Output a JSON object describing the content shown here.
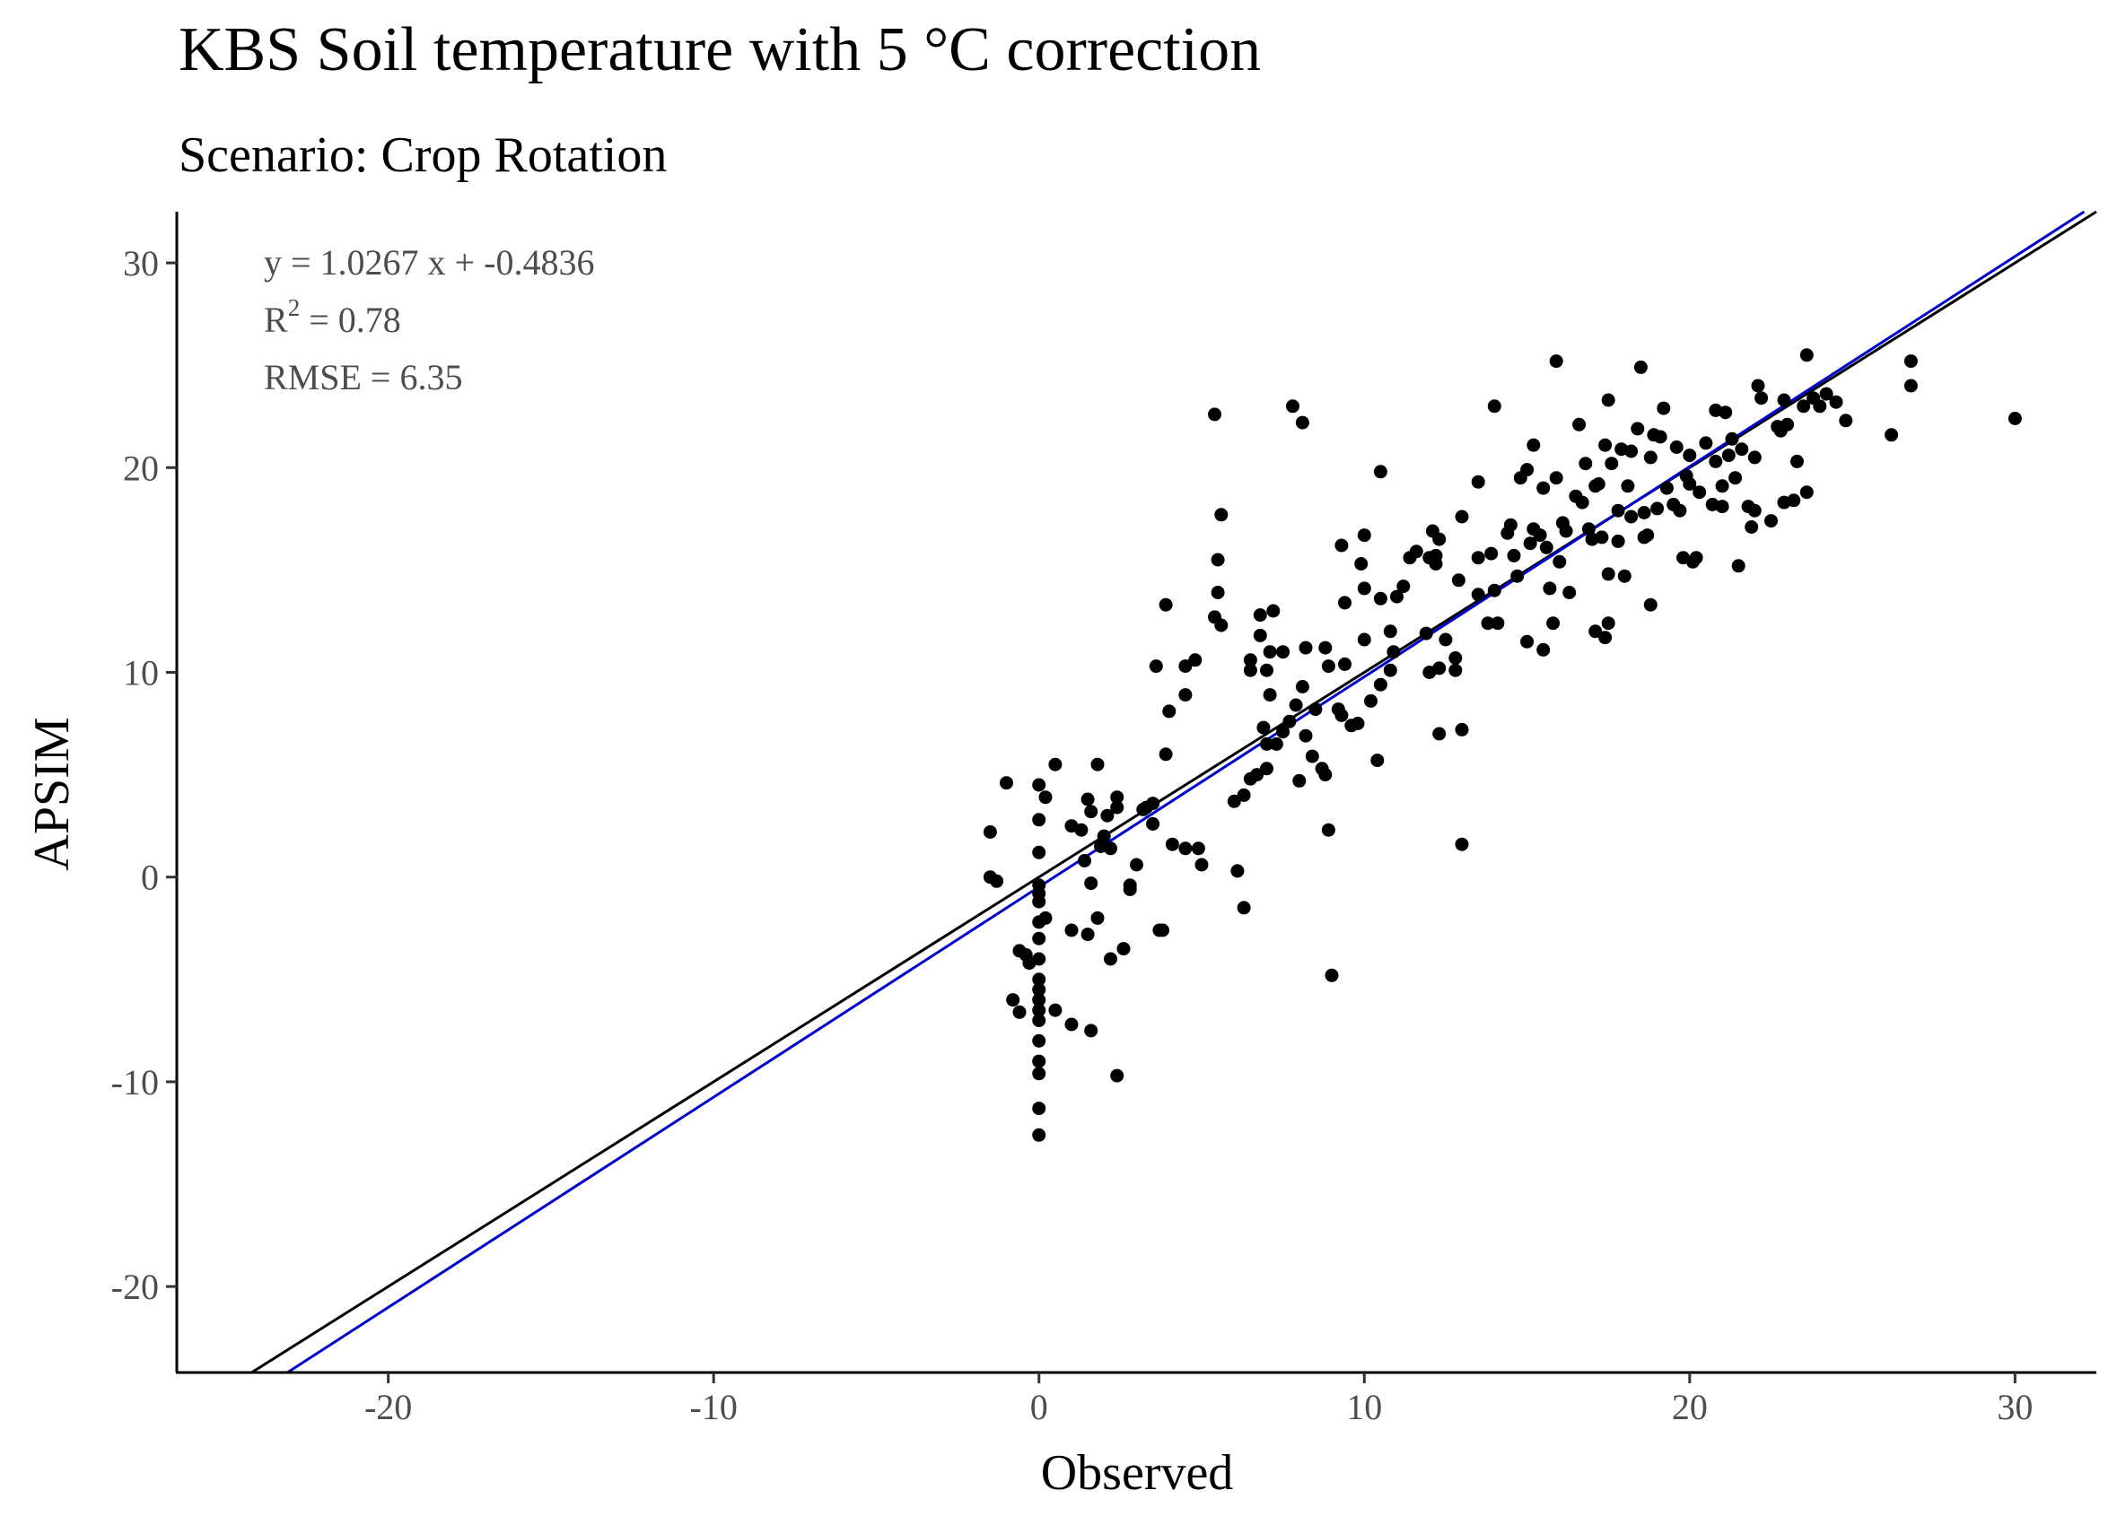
{
  "chart_data": {
    "type": "scatter",
    "title": "KBS Soil temperature with 5 °C correction",
    "subtitle": "Scenario: Crop Rotation",
    "xlabel": "Observed",
    "ylabel": "APSIM",
    "xlim": [
      -26.5,
      32.5
    ],
    "ylim": [
      -24.2,
      32.5
    ],
    "x_ticks": [
      -20,
      -10,
      0,
      10,
      20,
      30
    ],
    "y_ticks": [
      -20,
      -10,
      0,
      10,
      20,
      30
    ],
    "grid": false,
    "annotations": {
      "equation": "y = 1.0267 x +  -0.4836",
      "r2_base": "R",
      "r2_sup": "2",
      "r2_value": " = 0.78",
      "rmse": "RMSE = 6.35"
    },
    "lines": [
      {
        "role": "1:1 reference",
        "slope": 1.0,
        "intercept": 0.0,
        "color": "#000000"
      },
      {
        "role": "regression fit",
        "slope": 1.0267,
        "intercept": -0.4836,
        "color": "#0000cd"
      }
    ],
    "point_color": "#000000",
    "points": [
      [
        -1.5,
        0.0
      ],
      [
        -1.3,
        -0.2
      ],
      [
        -1.5,
        2.2
      ],
      [
        -1.0,
        4.6
      ],
      [
        -0.8,
        -6.0
      ],
      [
        -0.6,
        -6.6
      ],
      [
        -0.6,
        -3.6
      ],
      [
        -0.4,
        -3.8
      ],
      [
        -0.3,
        -4.2
      ],
      [
        0.0,
        -0.4
      ],
      [
        0.0,
        -0.8
      ],
      [
        0.0,
        -1.2
      ],
      [
        0.0,
        -2.2
      ],
      [
        0.0,
        -3.0
      ],
      [
        0.0,
        -4.0
      ],
      [
        0.0,
        -5.0
      ],
      [
        0.0,
        -5.5
      ],
      [
        0.0,
        -6.0
      ],
      [
        0.0,
        -6.5
      ],
      [
        0.0,
        -7.0
      ],
      [
        0.0,
        -8.0
      ],
      [
        0.0,
        -9.0
      ],
      [
        0.0,
        -9.6
      ],
      [
        0.0,
        -11.3
      ],
      [
        0.0,
        -12.6
      ],
      [
        0.0,
        1.2
      ],
      [
        0.0,
        2.8
      ],
      [
        0.0,
        4.5
      ],
      [
        0.2,
        3.9
      ],
      [
        0.2,
        -2.0
      ],
      [
        0.5,
        -6.5
      ],
      [
        0.5,
        5.5
      ],
      [
        1.0,
        -2.6
      ],
      [
        1.0,
        2.5
      ],
      [
        1.0,
        -7.2
      ],
      [
        1.3,
        2.3
      ],
      [
        1.4,
        0.8
      ],
      [
        1.5,
        -2.8
      ],
      [
        1.5,
        3.8
      ],
      [
        1.6,
        -0.3
      ],
      [
        1.6,
        3.2
      ],
      [
        1.6,
        -7.5
      ],
      [
        1.8,
        -2.0
      ],
      [
        1.8,
        5.5
      ],
      [
        1.9,
        1.5
      ],
      [
        2.0,
        2.0
      ],
      [
        2.1,
        3.0
      ],
      [
        2.2,
        -4.0
      ],
      [
        2.2,
        1.4
      ],
      [
        2.4,
        -9.7
      ],
      [
        2.4,
        3.9
      ],
      [
        2.4,
        3.4
      ],
      [
        2.6,
        -3.5
      ],
      [
        2.8,
        -0.4
      ],
      [
        2.8,
        -0.6
      ],
      [
        3.0,
        0.6
      ],
      [
        3.2,
        3.3
      ],
      [
        3.3,
        3.4
      ],
      [
        3.5,
        3.6
      ],
      [
        3.5,
        2.6
      ],
      [
        3.6,
        10.3
      ],
      [
        3.7,
        -2.6
      ],
      [
        3.8,
        -2.6
      ],
      [
        3.9,
        6.0
      ],
      [
        3.9,
        13.3
      ],
      [
        4.0,
        8.1
      ],
      [
        4.1,
        1.6
      ],
      [
        4.5,
        10.3
      ],
      [
        4.5,
        8.9
      ],
      [
        4.5,
        1.4
      ],
      [
        4.8,
        10.6
      ],
      [
        4.9,
        1.4
      ],
      [
        5.0,
        0.6
      ],
      [
        5.4,
        22.6
      ],
      [
        5.4,
        12.7
      ],
      [
        5.5,
        15.5
      ],
      [
        5.5,
        13.9
      ],
      [
        5.6,
        17.7
      ],
      [
        5.6,
        12.3
      ],
      [
        6.0,
        3.7
      ],
      [
        6.1,
        0.3
      ],
      [
        6.3,
        -1.5
      ],
      [
        6.3,
        4.0
      ],
      [
        6.5,
        10.6
      ],
      [
        6.5,
        10.1
      ],
      [
        6.5,
        4.8
      ],
      [
        6.7,
        5.0
      ],
      [
        6.8,
        12.8
      ],
      [
        6.8,
        11.8
      ],
      [
        6.9,
        7.3
      ],
      [
        7.0,
        6.5
      ],
      [
        7.0,
        10.1
      ],
      [
        7.0,
        5.3
      ],
      [
        7.1,
        11.0
      ],
      [
        7.1,
        8.9
      ],
      [
        7.2,
        13.0
      ],
      [
        7.3,
        6.5
      ],
      [
        7.5,
        11.0
      ],
      [
        7.5,
        7.1
      ],
      [
        7.7,
        7.6
      ],
      [
        7.8,
        23.0
      ],
      [
        7.9,
        8.4
      ],
      [
        8.0,
        4.7
      ],
      [
        8.1,
        22.2
      ],
      [
        8.1,
        9.3
      ],
      [
        8.2,
        6.9
      ],
      [
        8.2,
        11.2
      ],
      [
        8.4,
        5.9
      ],
      [
        8.5,
        8.2
      ],
      [
        8.7,
        5.3
      ],
      [
        8.8,
        5.0
      ],
      [
        8.8,
        11.2
      ],
      [
        8.9,
        10.3
      ],
      [
        8.9,
        2.3
      ],
      [
        9.0,
        -4.8
      ],
      [
        9.2,
        8.2
      ],
      [
        9.3,
        7.9
      ],
      [
        9.3,
        16.2
      ],
      [
        9.4,
        13.4
      ],
      [
        9.4,
        10.4
      ],
      [
        9.6,
        7.4
      ],
      [
        9.8,
        7.5
      ],
      [
        9.9,
        15.3
      ],
      [
        10.0,
        16.7
      ],
      [
        10.0,
        14.1
      ],
      [
        10.0,
        11.6
      ],
      [
        10.2,
        8.6
      ],
      [
        10.4,
        5.7
      ],
      [
        10.5,
        13.6
      ],
      [
        10.5,
        19.8
      ],
      [
        10.5,
        9.4
      ],
      [
        10.8,
        10.1
      ],
      [
        10.8,
        12.0
      ],
      [
        10.9,
        11.0
      ],
      [
        11.0,
        13.7
      ],
      [
        11.2,
        14.2
      ],
      [
        11.4,
        15.6
      ],
      [
        11.6,
        15.9
      ],
      [
        11.9,
        11.9
      ],
      [
        12.0,
        10.0
      ],
      [
        12.0,
        15.6
      ],
      [
        12.1,
        16.9
      ],
      [
        12.2,
        15.7
      ],
      [
        12.2,
        15.3
      ],
      [
        12.3,
        16.5
      ],
      [
        12.3,
        10.2
      ],
      [
        12.3,
        7.0
      ],
      [
        12.5,
        11.6
      ],
      [
        12.8,
        10.7
      ],
      [
        12.8,
        10.1
      ],
      [
        12.9,
        14.5
      ],
      [
        13.0,
        17.6
      ],
      [
        13.0,
        7.2
      ],
      [
        13.0,
        1.6
      ],
      [
        13.5,
        15.6
      ],
      [
        13.5,
        13.8
      ],
      [
        13.5,
        19.3
      ],
      [
        13.8,
        12.4
      ],
      [
        13.9,
        15.8
      ],
      [
        14.0,
        14.0
      ],
      [
        14.0,
        23.0
      ],
      [
        14.1,
        12.4
      ],
      [
        14.4,
        16.8
      ],
      [
        14.5,
        17.2
      ],
      [
        14.6,
        15.7
      ],
      [
        14.7,
        14.7
      ],
      [
        14.8,
        19.5
      ],
      [
        15.0,
        19.9
      ],
      [
        15.0,
        11.5
      ],
      [
        15.1,
        16.3
      ],
      [
        15.2,
        17.0
      ],
      [
        15.2,
        21.1
      ],
      [
        15.4,
        16.7
      ],
      [
        15.5,
        11.1
      ],
      [
        15.5,
        19.0
      ],
      [
        15.6,
        16.1
      ],
      [
        15.7,
        14.1
      ],
      [
        15.8,
        12.4
      ],
      [
        15.9,
        25.2
      ],
      [
        15.9,
        19.5
      ],
      [
        16.0,
        15.4
      ],
      [
        16.1,
        17.3
      ],
      [
        16.2,
        16.9
      ],
      [
        16.3,
        13.9
      ],
      [
        16.5,
        18.6
      ],
      [
        16.6,
        22.1
      ],
      [
        16.7,
        18.3
      ],
      [
        16.8,
        20.2
      ],
      [
        16.9,
        17.0
      ],
      [
        17.0,
        16.5
      ],
      [
        17.1,
        12.0
      ],
      [
        17.1,
        19.1
      ],
      [
        17.2,
        19.2
      ],
      [
        17.3,
        16.6
      ],
      [
        17.4,
        11.7
      ],
      [
        17.4,
        21.1
      ],
      [
        17.5,
        23.3
      ],
      [
        17.5,
        12.4
      ],
      [
        17.5,
        14.8
      ],
      [
        17.6,
        20.2
      ],
      [
        17.8,
        17.9
      ],
      [
        17.8,
        16.4
      ],
      [
        17.9,
        20.9
      ],
      [
        18.0,
        14.7
      ],
      [
        18.1,
        19.1
      ],
      [
        18.2,
        20.8
      ],
      [
        18.2,
        17.6
      ],
      [
        18.4,
        21.9
      ],
      [
        18.5,
        24.9
      ],
      [
        18.6,
        16.6
      ],
      [
        18.6,
        17.8
      ],
      [
        18.7,
        16.7
      ],
      [
        18.8,
        13.3
      ],
      [
        18.8,
        20.5
      ],
      [
        18.9,
        21.6
      ],
      [
        19.0,
        18.0
      ],
      [
        19.1,
        21.5
      ],
      [
        19.2,
        22.9
      ],
      [
        19.3,
        19.0
      ],
      [
        19.5,
        18.2
      ],
      [
        19.6,
        21.0
      ],
      [
        19.7,
        17.9
      ],
      [
        19.8,
        15.6
      ],
      [
        19.9,
        19.6
      ],
      [
        20.0,
        19.2
      ],
      [
        20.0,
        20.6
      ],
      [
        20.1,
        15.4
      ],
      [
        20.2,
        15.6
      ],
      [
        20.3,
        18.8
      ],
      [
        20.5,
        21.2
      ],
      [
        20.7,
        18.2
      ],
      [
        20.8,
        22.8
      ],
      [
        20.8,
        20.3
      ],
      [
        21.0,
        18.1
      ],
      [
        21.0,
        19.1
      ],
      [
        21.1,
        22.7
      ],
      [
        21.2,
        20.6
      ],
      [
        21.3,
        21.4
      ],
      [
        21.4,
        19.5
      ],
      [
        21.5,
        15.2
      ],
      [
        21.6,
        20.9
      ],
      [
        21.8,
        18.1
      ],
      [
        21.9,
        17.1
      ],
      [
        22.0,
        17.9
      ],
      [
        22.0,
        20.5
      ],
      [
        22.1,
        24.0
      ],
      [
        22.2,
        23.4
      ],
      [
        22.5,
        17.4
      ],
      [
        22.7,
        22.0
      ],
      [
        22.8,
        21.8
      ],
      [
        22.9,
        23.3
      ],
      [
        22.9,
        18.3
      ],
      [
        23.0,
        22.1
      ],
      [
        23.2,
        18.4
      ],
      [
        23.3,
        20.3
      ],
      [
        23.5,
        23.0
      ],
      [
        23.6,
        25.5
      ],
      [
        23.6,
        18.8
      ],
      [
        23.8,
        23.4
      ],
      [
        24.0,
        23.0
      ],
      [
        24.2,
        23.6
      ],
      [
        24.5,
        23.2
      ],
      [
        24.8,
        22.3
      ],
      [
        26.2,
        21.6
      ],
      [
        26.8,
        25.2
      ],
      [
        26.8,
        24.0
      ],
      [
        30.0,
        22.4
      ]
    ]
  }
}
